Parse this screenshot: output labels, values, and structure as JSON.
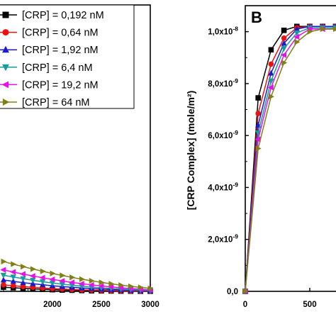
{
  "chart_data": [
    {
      "type": "line",
      "panel": "A",
      "panel_label": "",
      "title": "",
      "xlabel": "",
      "ylabel": "",
      "xlim": [
        1450,
        3000
      ],
      "xticks": [
        2000,
        2500,
        3000
      ],
      "xtick_labels": [
        "2000",
        "2500",
        "3000"
      ],
      "grid": false,
      "legend_position": "top-left",
      "x": [
        1500,
        1600,
        1700,
        1800,
        1900,
        2000,
        2100,
        2200,
        2300,
        2400,
        2500,
        2600,
        2700,
        2800,
        2900,
        3000
      ],
      "series": [
        {
          "name": "[CRP] = 0,192 nM",
          "color": "#000000",
          "marker": "square",
          "values": [
            0.35,
            0.3,
            0.25,
            0.21,
            0.17,
            0.14,
            0.11,
            0.09,
            0.07,
            0.05,
            0.04,
            0.03,
            0.02,
            0.015,
            0.01,
            0.008
          ]
        },
        {
          "name": "[CRP] = 0,64 nM",
          "color": "#ee1111",
          "marker": "circle",
          "values": [
            0.55,
            0.47,
            0.4,
            0.34,
            0.28,
            0.23,
            0.19,
            0.15,
            0.12,
            0.1,
            0.08,
            0.06,
            0.045,
            0.035,
            0.025,
            0.02
          ]
        },
        {
          "name": "[CRP] = 1,92 nM",
          "color": "#1a1acc",
          "marker": "triangle-up",
          "values": [
            0.95,
            0.84,
            0.73,
            0.64,
            0.55,
            0.47,
            0.4,
            0.34,
            0.28,
            0.23,
            0.19,
            0.15,
            0.12,
            0.09,
            0.07,
            0.05
          ]
        },
        {
          "name": "[CRP] = 6,4 nM",
          "color": "#169c9c",
          "marker": "triangle-down",
          "values": [
            1.35,
            1.2,
            1.06,
            0.93,
            0.81,
            0.7,
            0.6,
            0.51,
            0.43,
            0.36,
            0.3,
            0.24,
            0.19,
            0.15,
            0.11,
            0.08
          ]
        },
        {
          "name": "[CRP] = 19,2 nM",
          "color": "#e810e8",
          "marker": "triangle-left",
          "values": [
            1.8,
            1.62,
            1.45,
            1.29,
            1.14,
            1.0,
            0.87,
            0.75,
            0.64,
            0.54,
            0.45,
            0.37,
            0.3,
            0.24,
            0.18,
            0.13
          ]
        },
        {
          "name": "[CRP] = 64 nM",
          "color": "#808019",
          "marker": "triangle-right",
          "values": [
            2.5,
            2.28,
            2.07,
            1.87,
            1.68,
            1.5,
            1.33,
            1.17,
            1.02,
            0.88,
            0.75,
            0.63,
            0.52,
            0.42,
            0.33,
            0.25
          ]
        }
      ],
      "ylim": [
        0,
        24
      ]
    },
    {
      "type": "line",
      "panel": "B",
      "panel_label": "B",
      "title": "",
      "xlabel": "",
      "ylabel": "[CRP Complex] (mole/m²)",
      "xlim": [
        0,
        1300
      ],
      "xticks": [
        0,
        500
      ],
      "xtick_labels": [
        "0",
        "500"
      ],
      "ylim": [
        0,
        1.1e-08
      ],
      "yticks": [
        0,
        2e-09,
        4e-09,
        6e-09,
        8e-09,
        1e-08
      ],
      "ytick_mantissas": [
        "0,0",
        "2,0x10",
        "4,0x10",
        "6,0x10",
        "8,0x10",
        "1,0x10"
      ],
      "ytick_exponents": [
        "",
        "-9",
        "-9",
        "-9",
        "-9",
        "-8"
      ],
      "grid": false,
      "x": [
        0,
        100,
        200,
        300,
        400,
        500,
        600,
        700,
        800,
        900
      ],
      "series": [
        {
          "color": "#000000",
          "marker": "square",
          "values": [
            0,
            7.45e-09,
            9.3e-09,
            1.005e-08,
            1.02e-08,
            1.02e-08,
            1.02e-08,
            1.02e-08,
            1.02e-08,
            1.02e-08
          ]
        },
        {
          "color": "#ee1111",
          "marker": "circle",
          "values": [
            0,
            6.85e-09,
            8.75e-09,
            9.75e-09,
            1.015e-08,
            1.02e-08,
            1.02e-08,
            1.02e-08,
            1.02e-08,
            1.02e-08
          ]
        },
        {
          "color": "#1a1acc",
          "marker": "triangle-up",
          "values": [
            0,
            6.4e-09,
            8.4e-09,
            9.55e-09,
            1.01e-08,
            1.02e-08,
            1.02e-08,
            1.02e-08,
            1.02e-08,
            1.02e-08
          ]
        },
        {
          "color": "#169c9c",
          "marker": "triangle-down",
          "values": [
            0,
            6.1e-09,
            8.1e-09,
            9.35e-09,
            9.95e-09,
            1.015e-08,
            1.015e-08,
            1.015e-08,
            1.015e-08,
            1.015e-08
          ]
        },
        {
          "color": "#e810e8",
          "marker": "triangle-left",
          "values": [
            0,
            5.85e-09,
            7.85e-09,
            9.1e-09,
            9.8e-09,
            1.01e-08,
            1.01e-08,
            1.01e-08,
            1.01e-08,
            1.01e-08
          ]
        },
        {
          "color": "#808019",
          "marker": "triangle-right",
          "values": [
            0,
            5.5e-09,
            7.5e-09,
            8.8e-09,
            9.6e-09,
            1e-08,
            1.01e-08,
            1.01e-08,
            1.01e-08,
            1.01e-08
          ]
        }
      ]
    }
  ]
}
